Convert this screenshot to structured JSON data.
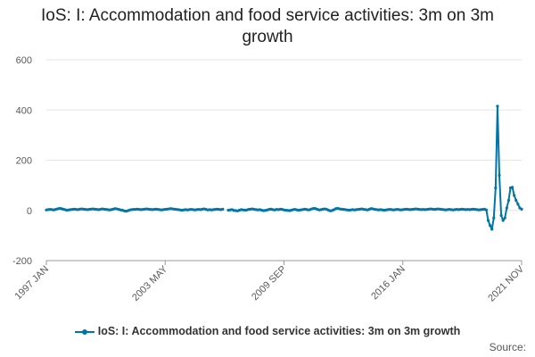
{
  "chart_data": {
    "type": "line",
    "title": "IoS: I: Accommodation and food service activities: 3m on 3m growth",
    "xlabel": "",
    "ylabel": "",
    "ylim": [
      -200,
      600
    ],
    "yticks": [
      "600",
      "400",
      "200",
      "0",
      "-200"
    ],
    "xticks": [
      "1997 JAN",
      "2003 MAY",
      "2009 SEP",
      "2016 JAN",
      "2021 NOV"
    ],
    "grid": true,
    "legend": "bottom",
    "series": [
      {
        "name": "IoS: I: Accommodation and food service activities: 3m on 3m growth",
        "color": "#0075a8",
        "x_start": "1997-01",
        "values": [
          2,
          3,
          4,
          3,
          2,
          4,
          6,
          8,
          7,
          5,
          3,
          1,
          2,
          3,
          4,
          5,
          4,
          3,
          5,
          6,
          5,
          4,
          3,
          4,
          5,
          6,
          5,
          4,
          3,
          4,
          6,
          5,
          4,
          3,
          2,
          3,
          5,
          7,
          6,
          4,
          2,
          1,
          -2,
          -3,
          -1,
          2,
          3,
          4,
          4,
          5,
          4,
          3,
          4,
          5,
          6,
          5,
          4,
          3,
          4,
          5,
          4,
          3,
          2,
          3,
          4,
          5,
          6,
          7,
          6,
          5,
          4,
          3,
          2,
          1,
          2,
          3,
          2,
          3,
          4,
          3,
          2,
          3,
          4,
          3,
          5,
          6,
          4,
          2,
          3,
          2,
          3,
          4,
          5,
          4,
          3,
          5,
          null,
          null,
          1,
          2,
          3,
          0,
          -1,
          -2,
          1,
          3,
          2,
          1,
          2,
          4,
          5,
          6,
          4,
          3,
          2,
          3,
          1,
          -1,
          0,
          2,
          4,
          5,
          3,
          2,
          4,
          3,
          5,
          4,
          2,
          1,
          0,
          -1,
          1,
          3,
          4,
          2,
          1,
          2,
          3,
          5,
          4,
          2,
          3,
          6,
          8,
          7,
          4,
          2,
          3,
          5,
          6,
          4,
          1,
          -2,
          0,
          3,
          7,
          8,
          6,
          5,
          4,
          3,
          2,
          1,
          2,
          3,
          2,
          3,
          4,
          5,
          6,
          4,
          3,
          2,
          5,
          7,
          6,
          4,
          3,
          2,
          3,
          2,
          1,
          2,
          3,
          4,
          3,
          2,
          3,
          4,
          3,
          2,
          3,
          4,
          5,
          4,
          3,
          4,
          5,
          6,
          5,
          4,
          3,
          4,
          3,
          4,
          5,
          6,
          5,
          4,
          5,
          6,
          5,
          4,
          3,
          2,
          3,
          4,
          3,
          2,
          3,
          4,
          3,
          4,
          5,
          4,
          3,
          4,
          3,
          4,
          5,
          4,
          3,
          2,
          3,
          4,
          5,
          2,
          -40,
          -60,
          -75,
          -30,
          90,
          415,
          140,
          -20,
          -40,
          -30,
          10,
          40,
          90,
          92,
          60,
          40,
          25,
          10,
          5
        ]
      }
    ],
    "source": "Source:"
  }
}
